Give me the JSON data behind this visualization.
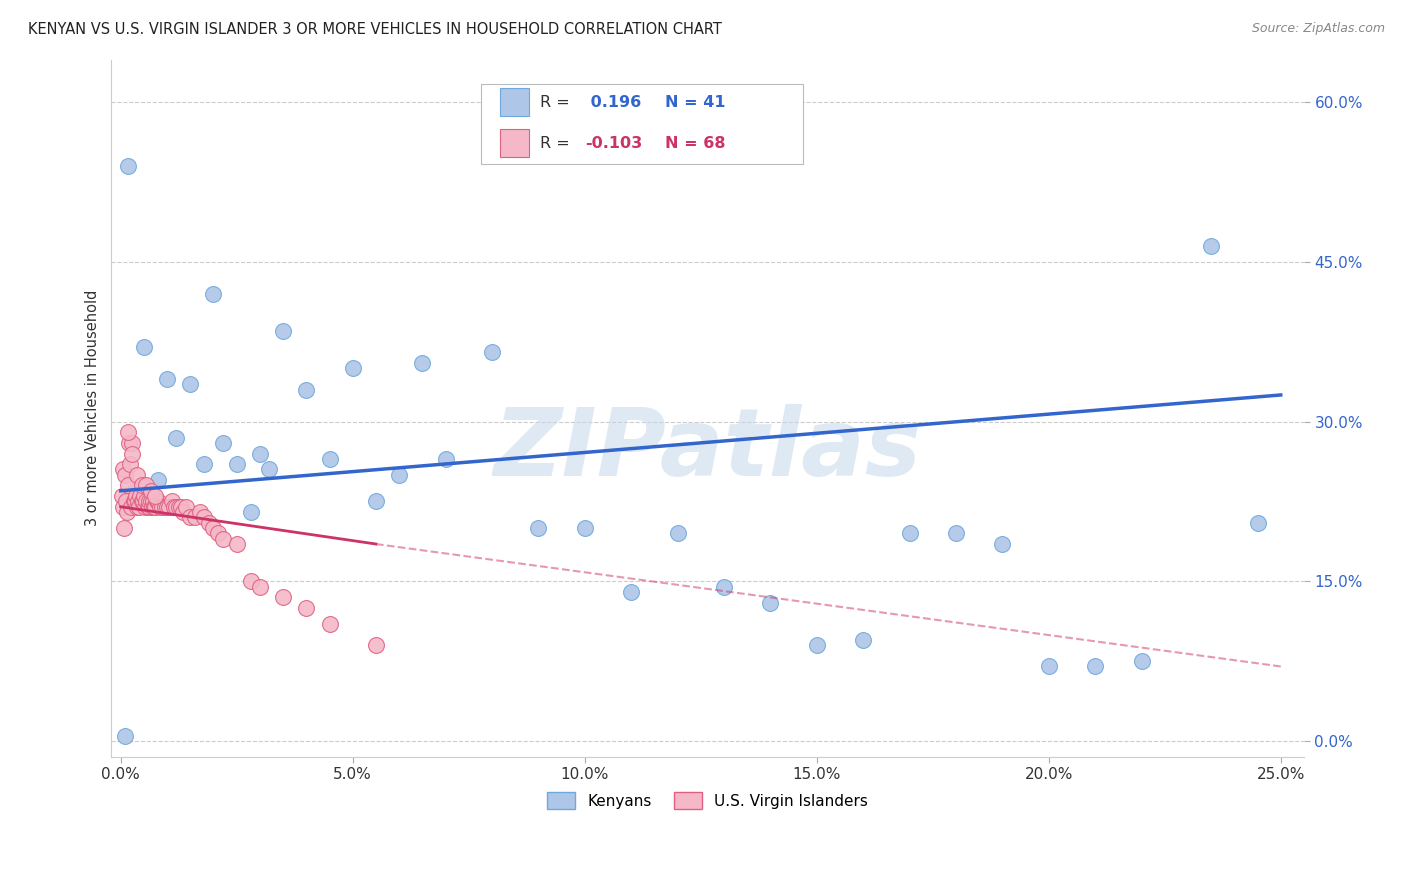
{
  "title": "KENYAN VS U.S. VIRGIN ISLANDER 3 OR MORE VEHICLES IN HOUSEHOLD CORRELATION CHART",
  "source": "Source: ZipAtlas.com",
  "ylabel_label": "3 or more Vehicles in Household",
  "xlim": [
    0.0,
    25.0
  ],
  "ylim": [
    0.0,
    63.0
  ],
  "x_tick_vals": [
    0,
    5,
    10,
    15,
    20,
    25
  ],
  "x_tick_labels": [
    "0.0%",
    "5.0%",
    "10.0%",
    "15.0%",
    "20.0%",
    "25.0%"
  ],
  "y_tick_vals": [
    0,
    15,
    30,
    45,
    60
  ],
  "y_tick_labels": [
    "0.0%",
    "15.0%",
    "30.0%",
    "45.0%",
    "60.0%"
  ],
  "kenyan_color": "#aec6e8",
  "kenyan_edge": "#6fa8dc",
  "virgin_color": "#f4b8c8",
  "virgin_edge": "#e06080",
  "trend_kenyan_color": "#3366cc",
  "trend_virgin_color": "#cc3366",
  "R_kenyan": 0.196,
  "N_kenyan": 41,
  "R_virgin": -0.103,
  "N_virgin": 68,
  "watermark": "ZIPatlas",
  "legend_labels": [
    "Kenyans",
    "U.S. Virgin Islanders"
  ],
  "kenyan_x": [
    0.15,
    0.5,
    1.0,
    1.5,
    2.0,
    2.5,
    3.0,
    3.5,
    4.0,
    4.5,
    5.0,
    5.5,
    6.0,
    7.0,
    8.0,
    9.0,
    10.0,
    11.0,
    12.0,
    13.0,
    14.0,
    15.0,
    16.0,
    17.0,
    18.0,
    19.0,
    20.0,
    21.0,
    22.0,
    23.5,
    24.5,
    0.8,
    1.2,
    1.8,
    2.2,
    2.8,
    3.2,
    0.3,
    0.6,
    6.5,
    0.1
  ],
  "kenyan_y": [
    54.0,
    37.0,
    34.0,
    33.5,
    42.0,
    26.0,
    27.0,
    38.5,
    33.0,
    26.5,
    35.0,
    22.5,
    25.0,
    26.5,
    36.5,
    20.0,
    20.0,
    14.0,
    19.5,
    14.5,
    13.0,
    9.0,
    9.5,
    19.5,
    19.5,
    18.5,
    7.0,
    7.0,
    7.5,
    46.5,
    20.5,
    24.5,
    28.5,
    26.0,
    28.0,
    21.5,
    25.5,
    23.5,
    22.0,
    35.5,
    0.5
  ],
  "virgin_x": [
    0.02,
    0.04,
    0.06,
    0.08,
    0.1,
    0.12,
    0.14,
    0.16,
    0.18,
    0.2,
    0.22,
    0.25,
    0.28,
    0.3,
    0.32,
    0.35,
    0.38,
    0.4,
    0.42,
    0.45,
    0.48,
    0.5,
    0.52,
    0.55,
    0.58,
    0.6,
    0.62,
    0.65,
    0.68,
    0.7,
    0.72,
    0.75,
    0.78,
    0.8,
    0.85,
    0.9,
    0.95,
    1.0,
    1.05,
    1.1,
    1.15,
    1.2,
    1.25,
    1.3,
    1.35,
    1.4,
    1.5,
    1.6,
    1.7,
    1.8,
    1.9,
    2.0,
    2.1,
    2.2,
    2.5,
    2.8,
    3.0,
    3.5,
    4.0,
    4.5,
    0.15,
    0.25,
    0.35,
    0.45,
    0.55,
    0.65,
    0.75,
    5.5
  ],
  "virgin_y": [
    23.0,
    25.5,
    22.0,
    20.0,
    25.0,
    22.5,
    21.5,
    24.0,
    28.0,
    26.0,
    22.0,
    28.0,
    22.5,
    22.5,
    23.0,
    22.0,
    22.5,
    22.0,
    23.0,
    22.5,
    22.5,
    23.0,
    22.0,
    22.5,
    22.0,
    22.0,
    22.5,
    22.5,
    22.0,
    22.5,
    22.0,
    22.0,
    22.5,
    22.5,
    22.0,
    22.0,
    22.0,
    22.0,
    22.0,
    22.5,
    22.0,
    22.0,
    22.0,
    22.0,
    21.5,
    22.0,
    21.0,
    21.0,
    21.5,
    21.0,
    20.5,
    20.0,
    19.5,
    19.0,
    18.5,
    15.0,
    14.5,
    13.5,
    12.5,
    11.0,
    29.0,
    27.0,
    25.0,
    24.0,
    24.0,
    23.5,
    23.0,
    9.0
  ],
  "k_trend_x0": 0.0,
  "k_trend_y0": 23.5,
  "k_trend_x1": 25.0,
  "k_trend_y1": 32.5,
  "v_trend_solid_x0": 0.0,
  "v_trend_solid_y0": 22.0,
  "v_trend_solid_x1": 5.5,
  "v_trend_solid_y1": 18.5,
  "v_trend_dash_x0": 5.5,
  "v_trend_dash_y0": 18.5,
  "v_trend_dash_x1": 25.0,
  "v_trend_dash_y1": 7.0
}
